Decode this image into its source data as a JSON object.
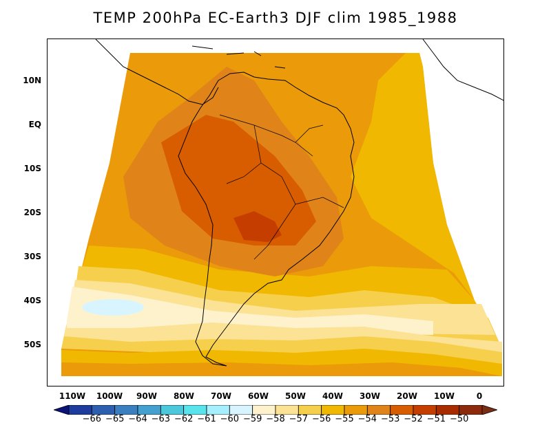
{
  "title": "TEMP 200hPa EC-Earth3 DJF clim 1985_1988",
  "map": {
    "variable": "TEMP",
    "level": "200hPa",
    "model": "EC-Earth3",
    "season": "DJF",
    "period": "1985_1988",
    "lat_labels": [
      "10N",
      "EQ",
      "10S",
      "20S",
      "30S",
      "40S",
      "50S"
    ],
    "lon_labels": [
      "110W",
      "100W",
      "90W",
      "80W",
      "70W",
      "60W",
      "50W",
      "40W",
      "30W",
      "20W",
      "10W",
      "0"
    ]
  },
  "colorbar": {
    "labels": [
      "-66",
      "-65",
      "-64",
      "-63",
      "-62",
      "-61",
      "-60",
      "-59",
      "-58",
      "-57",
      "-56",
      "-55",
      "-54",
      "-53",
      "-52",
      "-51",
      "-50"
    ],
    "colors": [
      "#1e3c9e",
      "#2d5fb0",
      "#3a7fc0",
      "#44a0d0",
      "#4cc8dd",
      "#58e4ec",
      "#a6efff",
      "#d8f5ff",
      "#fdf2cc",
      "#fbe294",
      "#f6d04c",
      "#f0b800",
      "#eb9a0a",
      "#e08419",
      "#d85d00",
      "#c53e00",
      "#a92b00",
      "#8e2a0c"
    ],
    "low_arrow_color": "#0a1478",
    "high_arrow_color": "#7a2e14"
  },
  "field_colors": {
    "level_minus59": "#d8f5ff",
    "level_minus58": "#fdf2cc",
    "level_minus57": "#fbe294",
    "level_minus56": "#f6d04c",
    "level_minus55": "#f0b800",
    "level_minus54": "#eb9a0a",
    "level_minus53": "#e08419",
    "level_minus52": "#d85d00",
    "level_minus51": "#c53e00",
    "coastline": "#000000"
  }
}
